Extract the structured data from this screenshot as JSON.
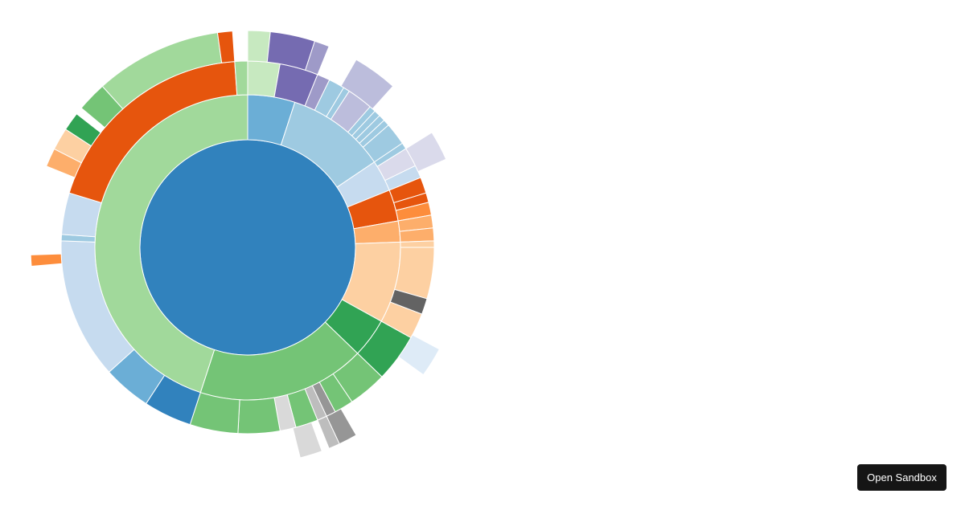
{
  "sandbox_button": {
    "label": "Open Sandbox"
  },
  "chart_data": {
    "type": "sunburst",
    "title": "",
    "center": [
      308,
      308
    ],
    "stroke": "#ffffff",
    "root": {
      "color": "#3182bd",
      "radius": 134
    },
    "rings": [
      {
        "r0": 134,
        "r1": 190,
        "segments": [
          {
            "a0": 0,
            "a1": 18,
            "color": "#6baed6"
          },
          {
            "a0": 18,
            "a1": 56,
            "color": "#9ecae1"
          },
          {
            "a0": 56,
            "a1": 68,
            "color": "#c6dbef"
          },
          {
            "a0": 68,
            "a1": 80,
            "color": "#e6550d"
          },
          {
            "a0": 80,
            "a1": 88,
            "color": "#fdae6b"
          },
          {
            "a0": 88,
            "a1": 119,
            "color": "#fdd0a2"
          },
          {
            "a0": 119,
            "a1": 134,
            "color": "#31a354"
          },
          {
            "a0": 134,
            "a1": 198,
            "color": "#74c476"
          },
          {
            "a0": 198,
            "a1": 360,
            "color": "#a1d99b"
          }
        ]
      },
      {
        "r0": 190,
        "r1": 232,
        "segments": [
          {
            "a0": 0,
            "a1": 10,
            "color": "#c7e9c0"
          },
          {
            "a0": 10,
            "a1": 22,
            "color": "#756bb1"
          },
          {
            "a0": 22,
            "a1": 26,
            "color": "#9e9ac8"
          },
          {
            "a0": 26,
            "a1": 31,
            "color": "#9ecae1"
          },
          {
            "a0": 31,
            "a1": 33,
            "color": "#9ecae1"
          },
          {
            "a0": 33,
            "a1": 41,
            "color": "#bcbddc"
          },
          {
            "a0": 41,
            "a1": 43,
            "color": "#9ecae1"
          },
          {
            "a0": 43,
            "a1": 45,
            "color": "#9ecae1"
          },
          {
            "a0": 45,
            "a1": 47,
            "color": "#9ecae1"
          },
          {
            "a0": 47,
            "a1": 49,
            "color": "#9ecae1"
          },
          {
            "a0": 49,
            "a1": 56,
            "color": "#9ecae1"
          },
          {
            "a0": 56,
            "a1": 58,
            "color": "#9ecae1"
          },
          {
            "a0": 58,
            "a1": 64,
            "color": "#dadaeb"
          },
          {
            "a0": 64,
            "a1": 68,
            "color": "#c6dbef"
          },
          {
            "a0": 68,
            "a1": 73,
            "color": "#e6550d"
          },
          {
            "a0": 73,
            "a1": 76,
            "color": "#e6550d"
          },
          {
            "a0": 76,
            "a1": 80,
            "color": "#fd8d3c"
          },
          {
            "a0": 80,
            "a1": 84,
            "color": "#fdae6b"
          },
          {
            "a0": 84,
            "a1": 88,
            "color": "#fdae6b"
          },
          {
            "a0": 88,
            "a1": 90,
            "color": "#fdd0a2"
          },
          {
            "a0": 90,
            "a1": 106,
            "color": "#fdd0a2"
          },
          {
            "a0": 106,
            "a1": 111,
            "color": "#636363"
          },
          {
            "a0": 111,
            "a1": 119,
            "color": "#fdd0a2"
          },
          {
            "a0": 119,
            "a1": 134,
            "color": "#31a354"
          },
          {
            "a0": 134,
            "a1": 146,
            "color": "#74c476"
          },
          {
            "a0": 146,
            "a1": 152,
            "color": "#74c476"
          },
          {
            "a0": 152,
            "a1": 155,
            "color": "#969696"
          },
          {
            "a0": 155,
            "a1": 158,
            "color": "#bdbdbd"
          },
          {
            "a0": 158,
            "a1": 165,
            "color": "#74c476"
          },
          {
            "a0": 165,
            "a1": 170,
            "color": "#d9d9d9"
          },
          {
            "a0": 170,
            "a1": 183,
            "color": "#74c476"
          },
          {
            "a0": 183,
            "a1": 198,
            "color": "#74c476"
          },
          {
            "a0": 198,
            "a1": 213,
            "color": "#3182bd"
          },
          {
            "a0": 213,
            "a1": 228,
            "color": "#6baed6"
          },
          {
            "a0": 228,
            "a1": 272,
            "color": "#c6dbef"
          },
          {
            "a0": 272,
            "a1": 274,
            "color": "#9ecae1"
          },
          {
            "a0": 274,
            "a1": 287,
            "color": "#c6dbef"
          },
          {
            "a0": 287,
            "a1": 356,
            "color": "#e6550d"
          },
          {
            "a0": 356,
            "a1": 360,
            "color": "#a1d99b"
          }
        ]
      },
      {
        "r0": 232,
        "r1": 270,
        "segments": [
          {
            "a0": 0,
            "a1": 6,
            "color": "#c7e9c0"
          },
          {
            "a0": 6,
            "a1": 18,
            "color": "#756bb1"
          },
          {
            "a0": 18,
            "a1": 22,
            "color": "#9e9ac8"
          },
          {
            "a0": 30,
            "a1": 42,
            "color": "#bcbddc"
          },
          {
            "a0": 58,
            "a1": 66,
            "color": "#dadaeb"
          },
          {
            "a0": 118,
            "a1": 126,
            "color": "#deebf7"
          },
          {
            "a0": 160,
            "a1": 166,
            "color": "#d9d9d9"
          },
          {
            "a0": 150,
            "a1": 155,
            "color": "#969696"
          },
          {
            "a0": 155,
            "a1": 158,
            "color": "#bdbdbd"
          },
          {
            "a0": 265,
            "a1": 268,
            "color": "#fd8d3c"
          },
          {
            "a0": 292,
            "a1": 297,
            "color": "#fdae6b"
          },
          {
            "a0": 297,
            "a1": 303,
            "color": "#fdd0a2"
          },
          {
            "a0": 303,
            "a1": 308,
            "color": "#31a354"
          },
          {
            "a0": 310,
            "a1": 318,
            "color": "#74c476"
          },
          {
            "a0": 318,
            "a1": 352,
            "color": "#a1d99b"
          },
          {
            "a0": 352,
            "a1": 356,
            "color": "#e6550d"
          }
        ]
      }
    ],
    "legend": [],
    "xlabel": "",
    "ylabel": ""
  }
}
